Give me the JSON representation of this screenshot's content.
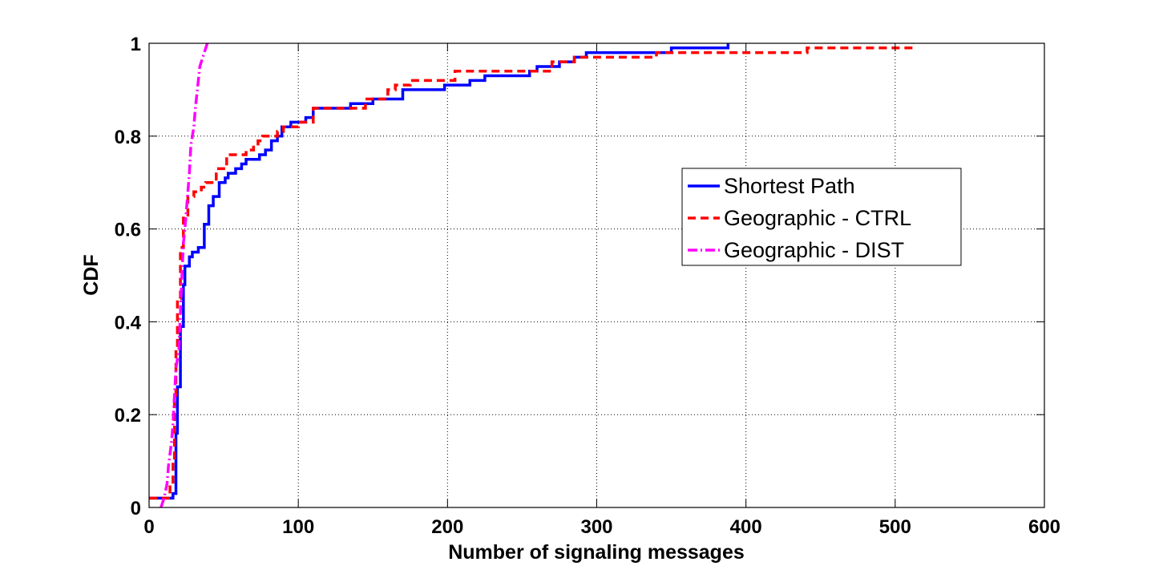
{
  "chart_data": {
    "type": "line",
    "title": "",
    "xlabel": "Number of signaling messages",
    "ylabel": "CDF",
    "xlim": [
      0,
      600
    ],
    "ylim": [
      0,
      1
    ],
    "xticks": [
      "0",
      "100",
      "200",
      "300",
      "400",
      "500",
      "600"
    ],
    "yticks": [
      "0",
      "0.2",
      "0.4",
      "0.6",
      "0.8",
      "1"
    ],
    "grid": true,
    "legend_position": "right-center",
    "series": [
      {
        "name": "Shortest Path",
        "color": "#0000ff",
        "style": "solid",
        "points": [
          [
            0,
            0.02
          ],
          [
            16,
            0.02
          ],
          [
            16,
            0.03
          ],
          [
            18,
            0.03
          ],
          [
            18,
            0.16
          ],
          [
            19,
            0.16
          ],
          [
            19,
            0.26
          ],
          [
            21,
            0.26
          ],
          [
            21,
            0.39
          ],
          [
            23,
            0.39
          ],
          [
            23,
            0.48
          ],
          [
            24,
            0.48
          ],
          [
            24,
            0.52
          ],
          [
            27,
            0.52
          ],
          [
            27,
            0.54
          ],
          [
            29,
            0.54
          ],
          [
            29,
            0.55
          ],
          [
            33,
            0.55
          ],
          [
            33,
            0.56
          ],
          [
            37,
            0.56
          ],
          [
            37,
            0.61
          ],
          [
            40,
            0.61
          ],
          [
            40,
            0.65
          ],
          [
            43,
            0.65
          ],
          [
            43,
            0.67
          ],
          [
            47,
            0.67
          ],
          [
            47,
            0.7
          ],
          [
            51,
            0.7
          ],
          [
            51,
            0.71
          ],
          [
            53,
            0.71
          ],
          [
            53,
            0.72
          ],
          [
            58,
            0.72
          ],
          [
            58,
            0.73
          ],
          [
            62,
            0.73
          ],
          [
            62,
            0.74
          ],
          [
            65,
            0.74
          ],
          [
            65,
            0.75
          ],
          [
            74,
            0.75
          ],
          [
            74,
            0.76
          ],
          [
            78,
            0.76
          ],
          [
            78,
            0.77
          ],
          [
            82,
            0.77
          ],
          [
            82,
            0.79
          ],
          [
            86,
            0.79
          ],
          [
            86,
            0.8
          ],
          [
            89,
            0.8
          ],
          [
            89,
            0.82
          ],
          [
            95,
            0.82
          ],
          [
            95,
            0.83
          ],
          [
            105,
            0.83
          ],
          [
            105,
            0.84
          ],
          [
            110,
            0.84
          ],
          [
            110,
            0.86
          ],
          [
            135,
            0.86
          ],
          [
            135,
            0.87
          ],
          [
            150,
            0.87
          ],
          [
            150,
            0.88
          ],
          [
            170,
            0.88
          ],
          [
            170,
            0.9
          ],
          [
            198,
            0.9
          ],
          [
            198,
            0.91
          ],
          [
            215,
            0.91
          ],
          [
            215,
            0.92
          ],
          [
            225,
            0.92
          ],
          [
            225,
            0.93
          ],
          [
            255,
            0.93
          ],
          [
            255,
            0.94
          ],
          [
            260,
            0.94
          ],
          [
            260,
            0.95
          ],
          [
            275,
            0.95
          ],
          [
            275,
            0.96
          ],
          [
            285,
            0.96
          ],
          [
            285,
            0.97
          ],
          [
            293,
            0.97
          ],
          [
            293,
            0.98
          ],
          [
            350,
            0.98
          ],
          [
            350,
            0.99
          ],
          [
            388,
            0.99
          ],
          [
            388,
            1.0
          ]
        ]
      },
      {
        "name": "Geographic - CTRL",
        "color": "#ff0000",
        "style": "dashed",
        "points": [
          [
            0,
            0.02
          ],
          [
            14,
            0.02
          ],
          [
            14,
            0.05
          ],
          [
            16,
            0.05
          ],
          [
            16,
            0.1
          ],
          [
            17,
            0.1
          ],
          [
            17,
            0.23
          ],
          [
            18,
            0.23
          ],
          [
            18,
            0.34
          ],
          [
            19,
            0.34
          ],
          [
            19,
            0.45
          ],
          [
            21,
            0.45
          ],
          [
            21,
            0.56
          ],
          [
            23,
            0.56
          ],
          [
            23,
            0.63
          ],
          [
            26,
            0.63
          ],
          [
            26,
            0.67
          ],
          [
            30,
            0.67
          ],
          [
            30,
            0.68
          ],
          [
            35,
            0.68
          ],
          [
            35,
            0.69
          ],
          [
            38,
            0.69
          ],
          [
            38,
            0.7
          ],
          [
            45,
            0.7
          ],
          [
            45,
            0.73
          ],
          [
            52,
            0.73
          ],
          [
            52,
            0.76
          ],
          [
            65,
            0.76
          ],
          [
            65,
            0.77
          ],
          [
            70,
            0.77
          ],
          [
            70,
            0.78
          ],
          [
            73,
            0.78
          ],
          [
            73,
            0.79
          ],
          [
            76,
            0.79
          ],
          [
            76,
            0.8
          ],
          [
            86,
            0.8
          ],
          [
            86,
            0.81
          ],
          [
            90,
            0.81
          ],
          [
            90,
            0.82
          ],
          [
            100,
            0.82
          ],
          [
            100,
            0.83
          ],
          [
            110,
            0.83
          ],
          [
            110,
            0.86
          ],
          [
            145,
            0.86
          ],
          [
            145,
            0.88
          ],
          [
            160,
            0.88
          ],
          [
            160,
            0.9
          ],
          [
            165,
            0.9
          ],
          [
            165,
            0.91
          ],
          [
            175,
            0.91
          ],
          [
            175,
            0.92
          ],
          [
            205,
            0.92
          ],
          [
            205,
            0.94
          ],
          [
            270,
            0.94
          ],
          [
            270,
            0.96
          ],
          [
            285,
            0.96
          ],
          [
            285,
            0.97
          ],
          [
            340,
            0.97
          ],
          [
            340,
            0.98
          ],
          [
            441,
            0.98
          ],
          [
            441,
            0.99
          ],
          [
            512,
            0.99
          ],
          [
            512,
            1.0
          ]
        ]
      },
      {
        "name": "Geographic - DIST",
        "color": "#ff00ff",
        "style": "dashdot",
        "points": [
          [
            8,
            0.0
          ],
          [
            10,
            0.02
          ],
          [
            12,
            0.05
          ],
          [
            13,
            0.09
          ],
          [
            15,
            0.14
          ],
          [
            16,
            0.18
          ],
          [
            17,
            0.24
          ],
          [
            18,
            0.3
          ],
          [
            20,
            0.34
          ],
          [
            21,
            0.42
          ],
          [
            22,
            0.5
          ],
          [
            23,
            0.57
          ],
          [
            24,
            0.6
          ],
          [
            25,
            0.64
          ],
          [
            26,
            0.68
          ],
          [
            27,
            0.72
          ],
          [
            28,
            0.78
          ],
          [
            29,
            0.8
          ],
          [
            30,
            0.82
          ],
          [
            31,
            0.86
          ],
          [
            32,
            0.89
          ],
          [
            33,
            0.92
          ],
          [
            34,
            0.95
          ],
          [
            36,
            0.97
          ],
          [
            37,
            0.98
          ],
          [
            38,
            0.99
          ],
          [
            39,
            1.0
          ]
        ]
      }
    ]
  }
}
